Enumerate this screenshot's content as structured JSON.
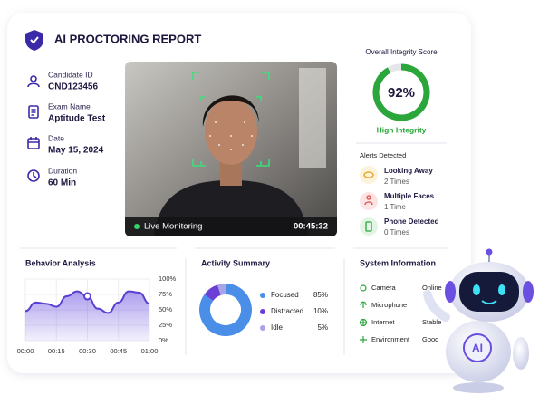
{
  "header": {
    "title": "AI PROCTORING REPORT"
  },
  "candidate": [
    {
      "label": "Candidate ID",
      "value": "CND123456"
    },
    {
      "label": "Exam Name",
      "value": "Aptitude Test"
    },
    {
      "label": "Date",
      "value": "May 15, 2024"
    },
    {
      "label": "Duration",
      "value": "60 Min"
    }
  ],
  "video": {
    "status": "Live Monitoring",
    "time": "00:45:32"
  },
  "integrity": {
    "title": "Overall Integrity Score",
    "value": 92,
    "value_label": "92%",
    "status": "High Integrity"
  },
  "alerts": {
    "title": "Alerts Detected",
    "items": [
      {
        "label": "Looking Away",
        "count": "2 Times"
      },
      {
        "label": "Multiple Faces",
        "count": "1 Time"
      },
      {
        "label": "Phone Detected",
        "count": "0 Times"
      }
    ]
  },
  "behavior": {
    "title": "Behavior Analysis",
    "chart_data": {
      "type": "line",
      "x": [
        0,
        5,
        10,
        15,
        20,
        25,
        30,
        35,
        40,
        45,
        50,
        55,
        60
      ],
      "values": [
        48,
        62,
        60,
        55,
        72,
        80,
        72,
        52,
        45,
        62,
        80,
        78,
        60
      ],
      "color": "#5b3fd1",
      "xlim": [
        0,
        60
      ],
      "xticks": [
        {
          "value": 0,
          "label": "00:00"
        },
        {
          "value": 15,
          "label": "00:15"
        },
        {
          "value": 30,
          "label": "00:30"
        },
        {
          "value": 45,
          "label": "00:45"
        },
        {
          "value": 60,
          "label": "01:00"
        }
      ],
      "ylim": [
        0,
        100
      ],
      "yticks": [
        {
          "value": 0,
          "label": "0%"
        },
        {
          "value": 25,
          "label": "25%"
        },
        {
          "value": 50,
          "label": "50%"
        },
        {
          "value": 75,
          "label": "75%"
        },
        {
          "value": 100,
          "label": "100%"
        }
      ],
      "grid": true,
      "highlight": 30
    }
  },
  "activity": {
    "title": "Activity Summary",
    "chart_data": {
      "type": "donut",
      "categories": [
        "Focused",
        "Distracted",
        "Idle"
      ],
      "values": [
        85,
        10,
        5
      ],
      "value_labels": [
        "85%",
        "10%",
        "5%"
      ],
      "colors": [
        "#4a8ee8",
        "#6a3fd6",
        "#a9a3e8"
      ]
    }
  },
  "system": {
    "title": "System Information",
    "items": [
      {
        "label": "Camera",
        "value": "Online"
      },
      {
        "label": "Microphone"
      },
      {
        "label": "Internet",
        "value": "Stable"
      },
      {
        "label": "Environment",
        "value": "Good"
      }
    ]
  },
  "robot": {
    "label": "AI"
  }
}
